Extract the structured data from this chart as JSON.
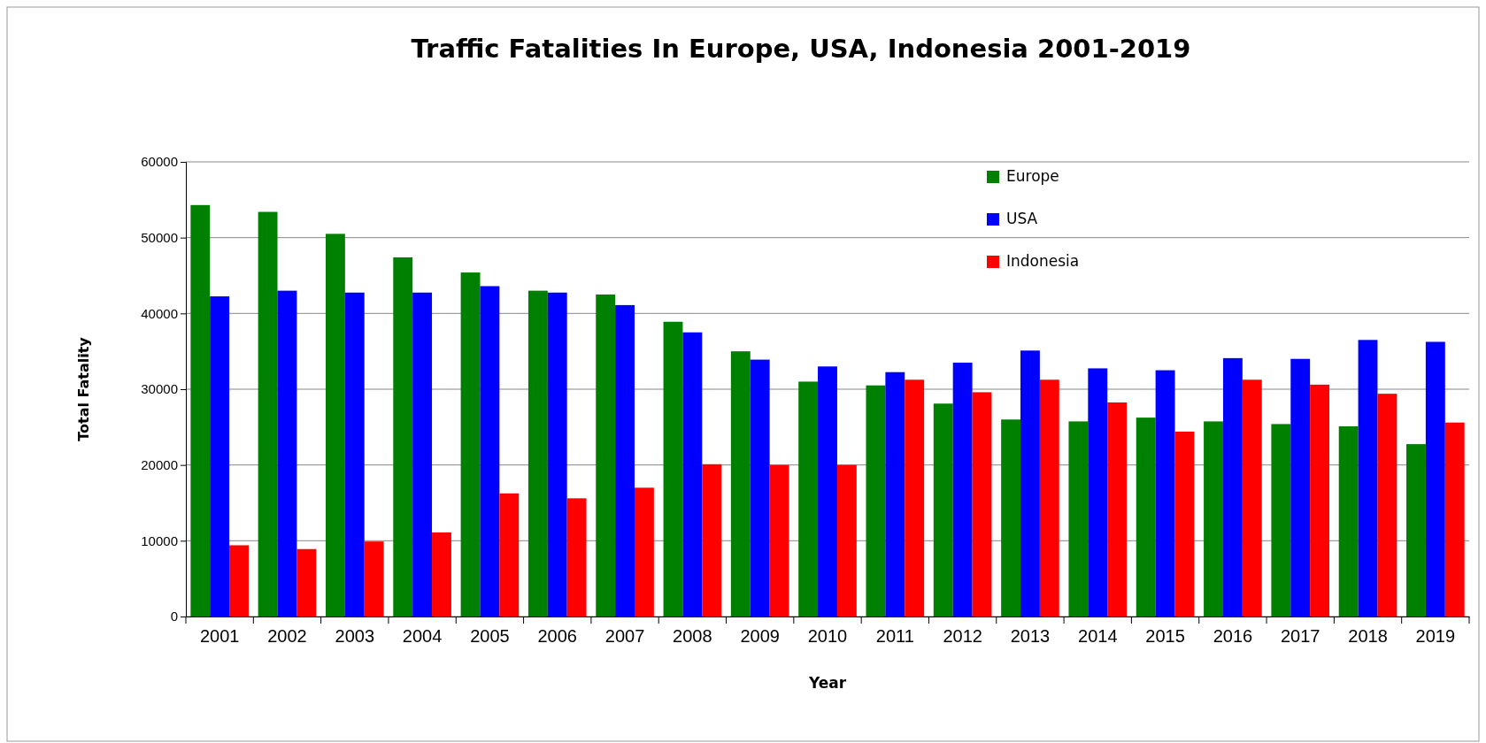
{
  "chart_data": {
    "type": "bar",
    "title": "Traffic Fatalities In Europe, USA, Indonesia 2001-2019",
    "xlabel": "Year",
    "ylabel": "Total Fatality",
    "categories": [
      "2001",
      "2002",
      "2003",
      "2004",
      "2005",
      "2006",
      "2007",
      "2008",
      "2009",
      "2010",
      "2011",
      "2012",
      "2013",
      "2014",
      "2015",
      "2016",
      "2017",
      "2018",
      "2019"
    ],
    "series": [
      {
        "name": "Europe",
        "color": "#008000",
        "values": [
          54300,
          53400,
          50500,
          47400,
          45400,
          43000,
          42500,
          38900,
          35000,
          31000,
          30500,
          28100,
          26000,
          25750,
          26250,
          25750,
          25400,
          25100,
          22750
        ]
      },
      {
        "name": "USA",
        "color": "#0000ff",
        "values": [
          42250,
          43000,
          42750,
          42750,
          43600,
          42750,
          41100,
          37500,
          33900,
          33000,
          32250,
          33500,
          35100,
          32750,
          32500,
          34100,
          34000,
          36500,
          36250
        ]
      },
      {
        "name": "Indonesia",
        "color": "#ff0000",
        "values": [
          9400,
          8900,
          9900,
          11100,
          16250,
          15600,
          17000,
          20100,
          20000,
          20000,
          31250,
          29600,
          31250,
          28250,
          24400,
          31250,
          30600,
          29400,
          25600
        ]
      }
    ],
    "ylim": [
      0,
      60000
    ],
    "yticks": [
      0,
      10000,
      20000,
      30000,
      40000,
      50000,
      60000
    ],
    "grid": "y",
    "legend": "top right"
  }
}
